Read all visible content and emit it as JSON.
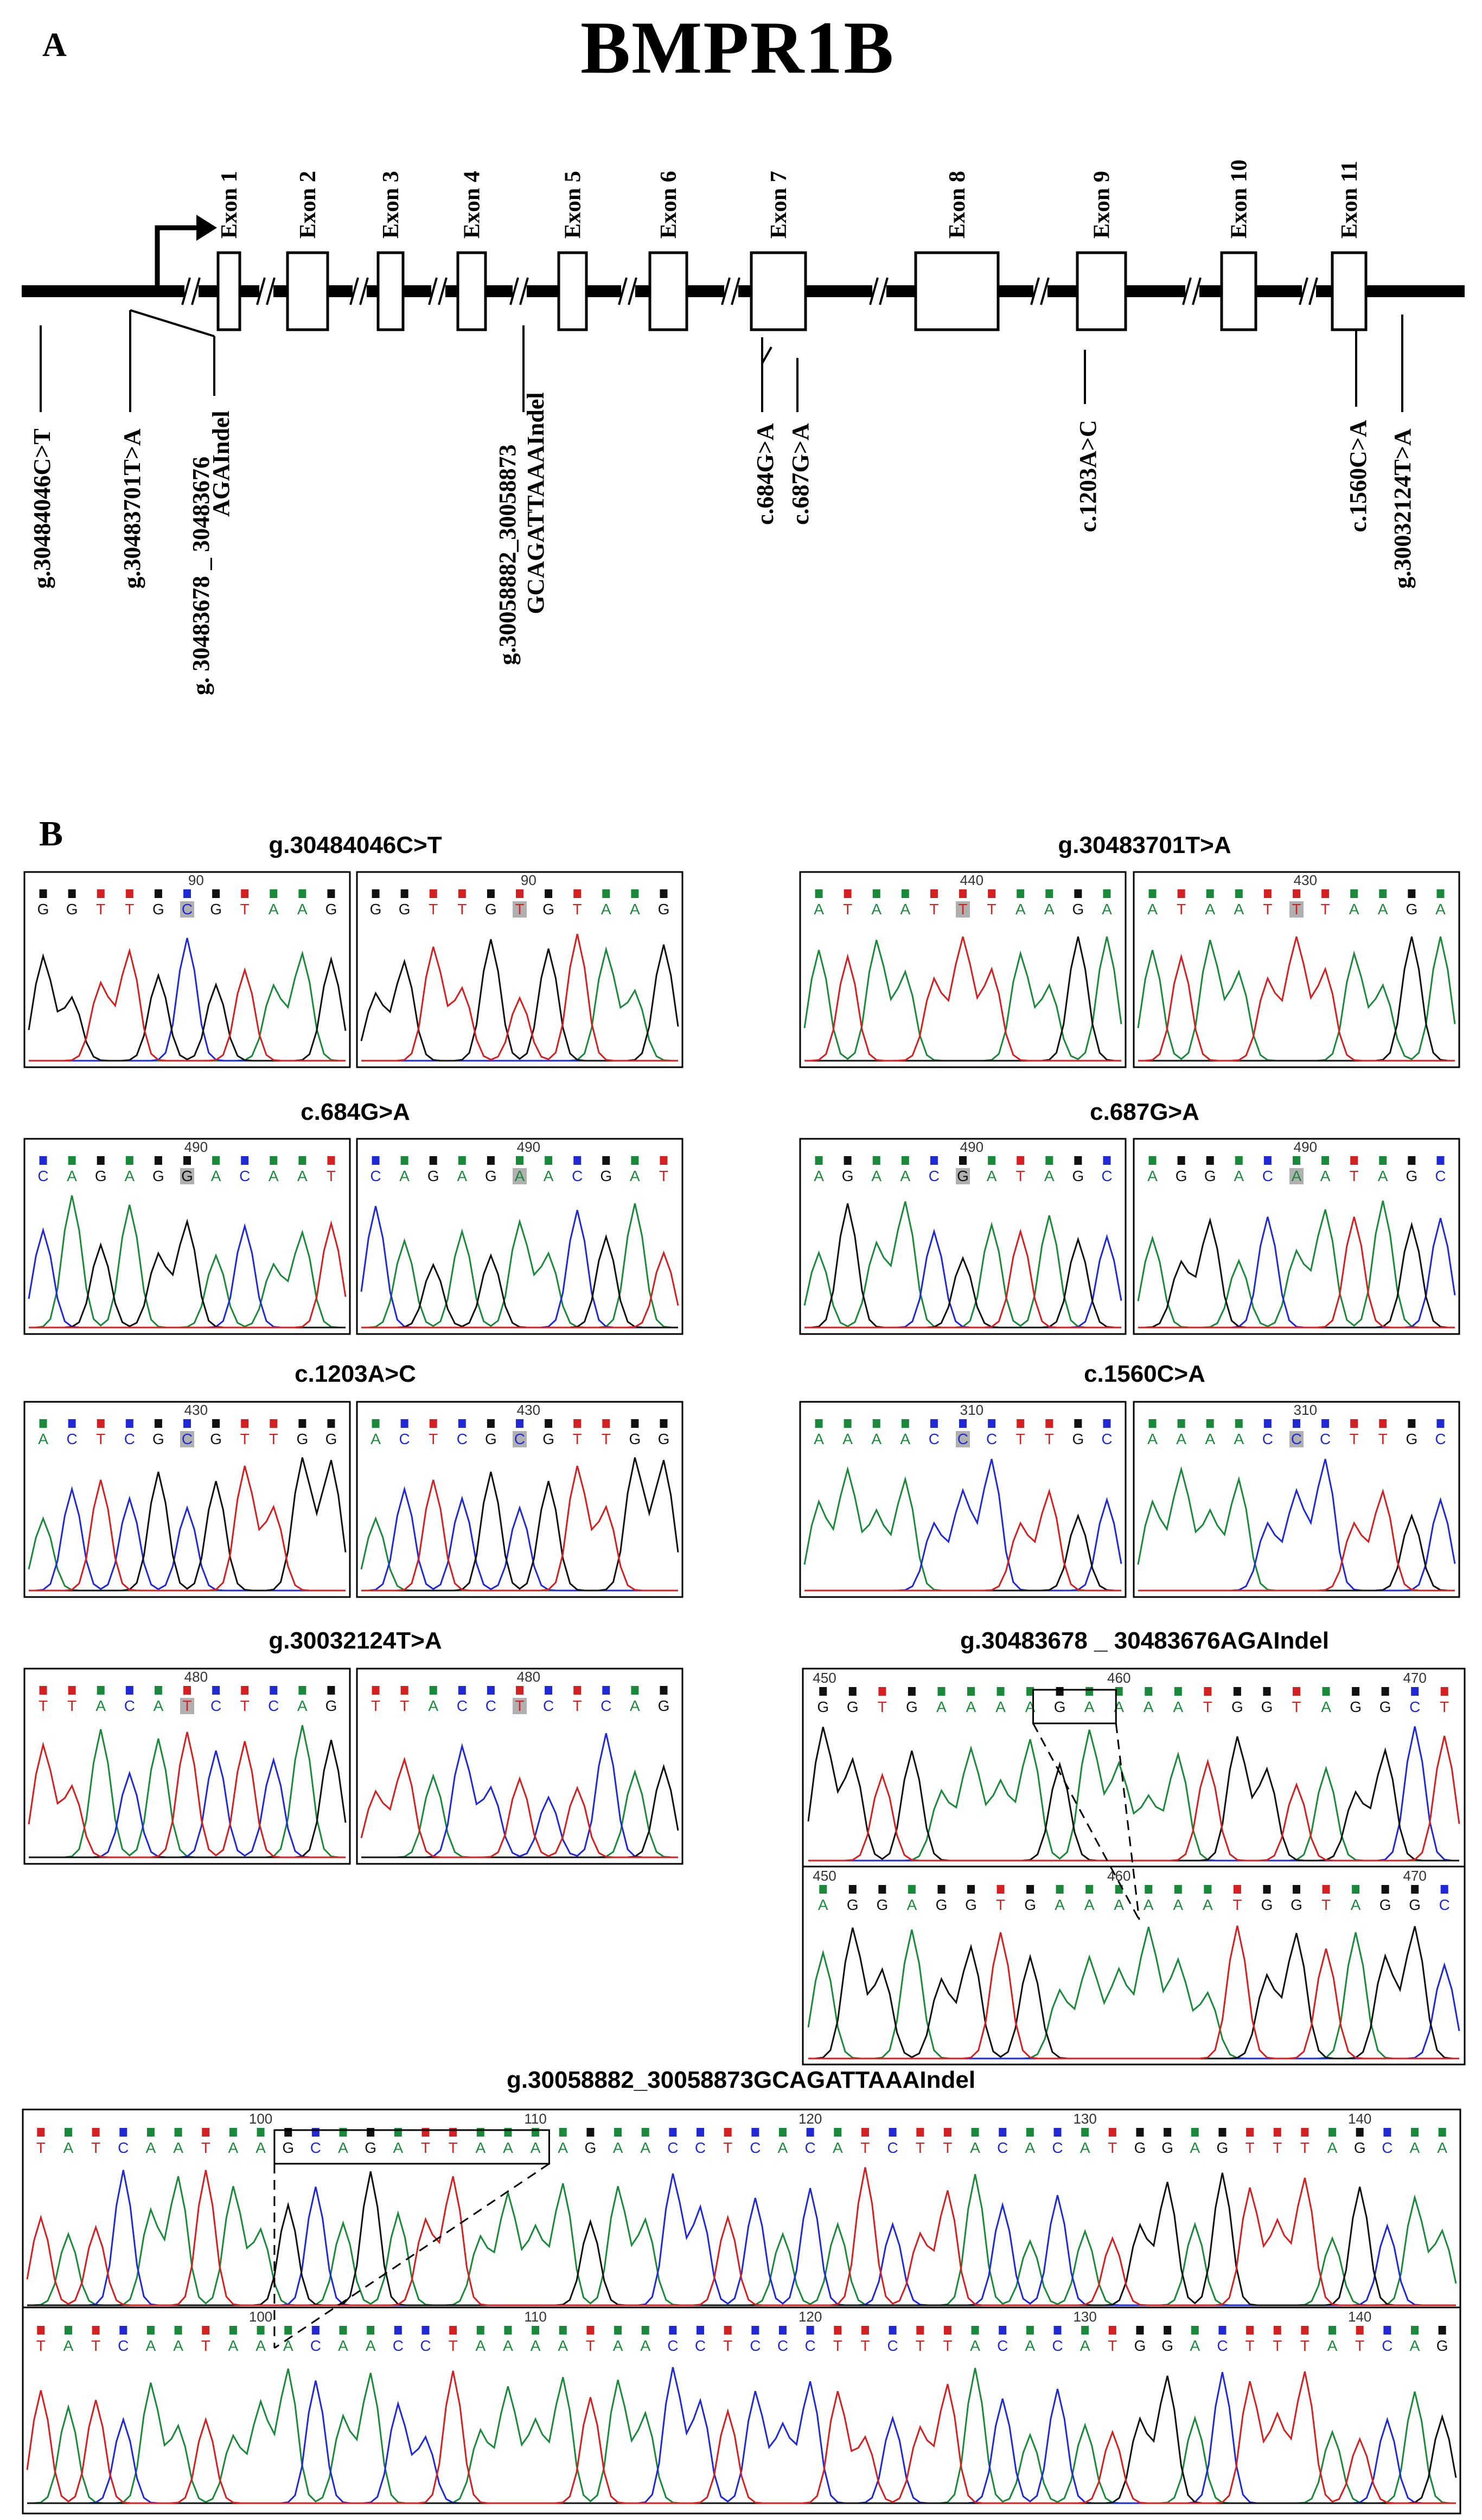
{
  "title": "BMPR1B",
  "panelA": {
    "label": "A",
    "exons": [
      "Exon 1",
      "Exon 2",
      "Exon 3",
      "Exon 4",
      "Exon 5",
      "Exon 6",
      "Exon 7",
      "Exon 8",
      "Exon 9",
      "Exon 10",
      "Exon 11"
    ],
    "variants": [
      {
        "lines": [
          "g.30484046C>T"
        ]
      },
      {
        "lines": [
          "g.30483701T>A"
        ]
      },
      {
        "lines": [
          "g. 30483678 _ 30483676",
          "AGAIndel"
        ]
      },
      {
        "lines": [
          "g.30058882_30058873",
          "GCAGATTAAAIndel"
        ]
      },
      {
        "lines": [
          "c.684G>A"
        ]
      },
      {
        "lines": [
          "c.687G>A"
        ]
      },
      {
        "lines": [
          "c.1203A>C"
        ]
      },
      {
        "lines": [
          "c.1560C>A"
        ]
      },
      {
        "lines": [
          "g.30032124T>A"
        ]
      }
    ]
  },
  "panelB": {
    "label": "B",
    "colors": {
      "A": "#1a8a3a",
      "C": "#1f2ad6",
      "G": "#111111",
      "T": "#d42020"
    },
    "panels": [
      {
        "title": "g.30484046C>T",
        "left": {
          "pos": "90",
          "seq": "GGTTGCGTAAG"
        },
        "right": {
          "pos": "90",
          "seq": "GGTTGTGTAAG"
        }
      },
      {
        "title": "g.30483701T>A",
        "left": {
          "pos": "440",
          "seq": "ATAATTTAAGA"
        },
        "right": {
          "pos": "430",
          "seq": "ATAATTTAAGA"
        }
      },
      {
        "title": "c.684G>A",
        "left": {
          "pos": "490",
          "seq": "CAGAGGACAAT"
        },
        "right": {
          "pos": "490",
          "seq": "CAGAGAACGAT"
        }
      },
      {
        "title": "c.687G>A",
        "left": {
          "pos": "490",
          "seq": "AGAACGATAGC"
        },
        "right": {
          "pos": "490",
          "seq": "AGGACAATAGC"
        }
      },
      {
        "title": "c.1203A>C",
        "left": {
          "pos": "430",
          "seq": "ACTCGCGTTGG"
        },
        "right": {
          "pos": "430",
          "seq": "ACTCGCGTTGG"
        }
      },
      {
        "title": "c.1560C>A",
        "left": {
          "pos": "310",
          "seq": "AAAACCCTTGC"
        },
        "right": {
          "pos": "310",
          "seq": "AAAACCCTTGC"
        }
      },
      {
        "title": "g.30032124T>A",
        "left": {
          "pos": "480",
          "seq": "TTACATCTCAG"
        },
        "right": {
          "pos": "480",
          "seq": "TTACCTCTCAG"
        }
      }
    ],
    "agaIndel": {
      "title": "g.30483678 _ 30483676AGAIndel",
      "top": {
        "positions": [
          "450",
          "460",
          "470"
        ],
        "seq": "GGTGAAAAGAAAATGGTAGGCT"
      },
      "bottom": {
        "positions": [
          "450",
          "460",
          "470"
        ],
        "seq": "AGGAGGTGAAAAAATGGTAGGC"
      }
    },
    "bigIndel": {
      "title": "g.30058882_30058873GCAGATTAAAIndel",
      "top": {
        "positions": [
          "100",
          "110",
          "120",
          "130",
          "140"
        ],
        "seq": "TATCAATAAGCAGATTAAAAGAACCTCACATCTTACACATGGAGTTTAGCAA"
      },
      "bottom": {
        "positions": [
          "100",
          "110",
          "120",
          "130",
          "140"
        ],
        "seq": "TATCAATAAACAACCTAAAATAACCTCCCTTCTTACACATGGACTTTATCAG"
      }
    }
  }
}
